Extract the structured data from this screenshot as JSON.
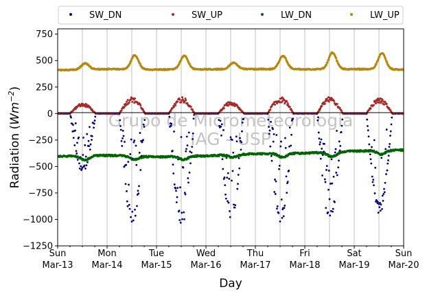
{
  "chart_data": {
    "type": "scatter",
    "xlabel": "Day",
    "ylabel_main": "Radiation (",
    "ylabel_units": "Wm",
    "ylabel_exp": "−2",
    "ylabel_close": ")",
    "ylim": [
      -1250,
      800
    ],
    "xlim": [
      0,
      7
    ],
    "yticks": [
      750,
      500,
      250,
      0,
      -250,
      -500,
      -750,
      -1000,
      -1250
    ],
    "ytick_labels": [
      "750",
      "500",
      "250",
      "0",
      "−250",
      "−500",
      "−750",
      "−1000",
      "−1250"
    ],
    "xticks": [
      {
        "day": 0,
        "weekday": "Sun",
        "date": "Mar-13"
      },
      {
        "day": 1,
        "weekday": "Mon",
        "date": "Mar-14"
      },
      {
        "day": 2,
        "weekday": "Tue",
        "date": "Mar-15"
      },
      {
        "day": 3,
        "weekday": "Wed",
        "date": "Mar-16"
      },
      {
        "day": 4,
        "weekday": "Thu",
        "date": "Mar-17"
      },
      {
        "day": 5,
        "weekday": "Fri",
        "date": "Mar-18"
      },
      {
        "day": 6,
        "weekday": "Sat",
        "date": "Mar-19"
      },
      {
        "day": 7,
        "weekday": "Sun",
        "date": "Mar-20"
      }
    ],
    "grid": "vertical",
    "legend_position": "top",
    "watermark": [
      "Grupo de Micrometeorologia",
      "IAG - USP"
    ],
    "series": [
      {
        "name": "SW_DN",
        "color": "#000080",
        "peaks": [
          -560,
          -1050,
          -1060,
          -1000,
          -1050,
          -1020,
          -950
        ]
      },
      {
        "name": "SW_UP",
        "color": "#a52a2a",
        "peaks": [
          95,
          150,
          150,
          110,
          150,
          150,
          140
        ]
      },
      {
        "name": "LW_DN",
        "color": "#006400",
        "baseline": [
          -405,
          -395,
          -410,
          -400,
          -380,
          -375,
          -355,
          -345
        ],
        "dips": [
          -40,
          -30,
          -30,
          -25,
          -35,
          -45,
          -35
        ]
      },
      {
        "name": "LW_UP",
        "color": "#b8860b",
        "baseline": [
          410,
          420,
          415,
          418,
          420,
          418,
          420,
          415
        ],
        "peaks": [
          475,
          550,
          545,
          480,
          545,
          575,
          570
        ]
      }
    ]
  }
}
